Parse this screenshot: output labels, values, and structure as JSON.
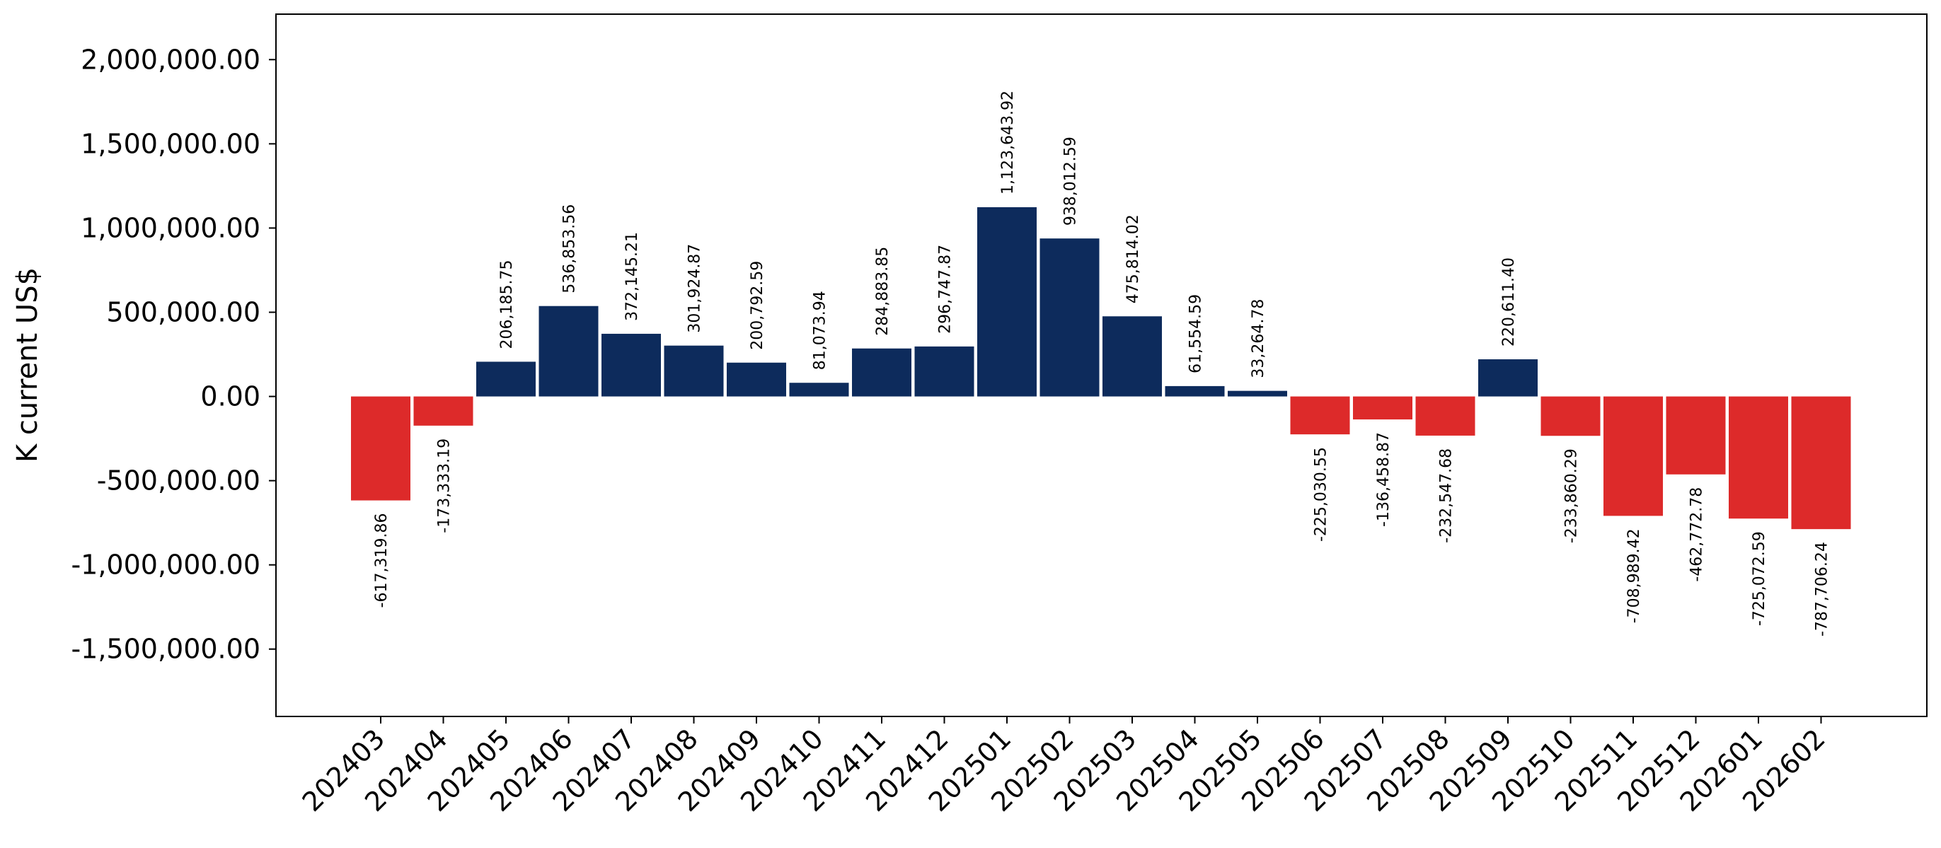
{
  "chart_data": {
    "type": "bar",
    "ylabel": "K current US$",
    "xlabel": "",
    "title": "",
    "ylim": [
      -1900000,
      2270000
    ],
    "yticks": [
      -1500000,
      -1000000,
      -500000,
      0,
      500000,
      1000000,
      1500000,
      2000000
    ],
    "ytick_labels": [
      "-1,500,000.00",
      "-1,000,000.00",
      "-500,000.00",
      "0.00",
      "500,000.00",
      "1,000,000.00",
      "1,500,000.00",
      "2,000,000.00"
    ],
    "categories": [
      "202403",
      "202404",
      "202405",
      "202406",
      "202407",
      "202408",
      "202409",
      "202410",
      "202411",
      "202412",
      "202501",
      "202502",
      "202503",
      "202504",
      "202505",
      "202506",
      "202507",
      "202508",
      "202509",
      "202510",
      "202511",
      "202512",
      "202601",
      "202602"
    ],
    "values": [
      -617319.86,
      -173333.19,
      206185.75,
      536853.56,
      372145.21,
      301924.87,
      200792.59,
      81073.94,
      284883.85,
      296747.87,
      1123643.92,
      938012.59,
      475814.02,
      61554.59,
      33264.78,
      -225030.55,
      -136458.87,
      -232547.68,
      220611.4,
      -233860.29,
      -708989.42,
      -462772.78,
      -725072.59,
      -787706.24
    ],
    "data_labels": [
      "-617,319.86",
      "-173,333.19",
      "206,185.75",
      "536,853.56",
      "372,145.21",
      "301,924.87",
      "200,792.59",
      "81,073.94",
      "284,883.85",
      "296,747.87",
      "1,123,643.92",
      "938,012.59",
      "475,814.02",
      "61,554.59",
      "33,264.78",
      "-225,030.55",
      "-136,458.87",
      "-232,547.68",
      "220,611.40",
      "-233,860.29",
      "-708,989.42",
      "-462,772.78",
      "-725,072.59",
      "-787,706.24"
    ],
    "colors": {
      "positive": "#0d2b5c",
      "negative": "#dd2a2a"
    },
    "grid": false,
    "legend": "none"
  }
}
